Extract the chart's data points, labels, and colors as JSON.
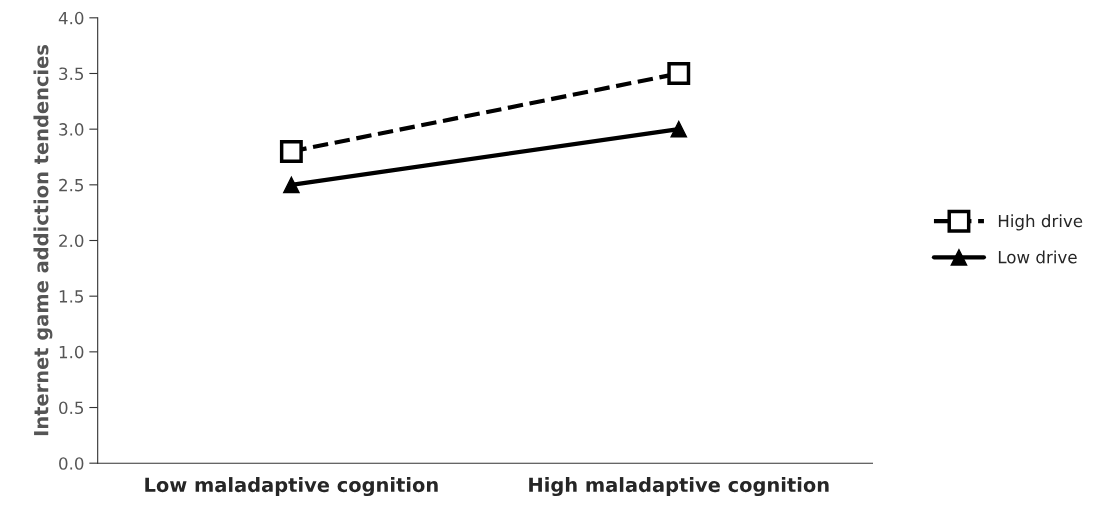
{
  "chart_data": {
    "type": "line",
    "categories": [
      "Low maladaptive cognition",
      "High maladaptive cognition"
    ],
    "ylabel": "Internet game addiction tendencies",
    "series": [
      {
        "name": "High drive",
        "color": "#000000",
        "values": [
          2.8,
          3.5
        ],
        "marker": "square",
        "line_style": "dashed"
      },
      {
        "name": "Low drive",
        "color": "#000000",
        "values": [
          2.5,
          3.0
        ],
        "marker": "triangle",
        "line_style": "solid"
      }
    ],
    "ylim": [
      0,
      4
    ],
    "yticks": [
      {
        "value": 0,
        "label": "0.0"
      },
      {
        "value": 0.5,
        "label": "0.5"
      },
      {
        "value": 1,
        "label": "1.0"
      },
      {
        "value": 1.5,
        "label": "1.5"
      },
      {
        "value": 2,
        "label": "2.0"
      },
      {
        "value": 2.5,
        "label": "2.5"
      },
      {
        "value": 3,
        "label": "3.0"
      },
      {
        "value": 3.5,
        "label": "3.5"
      },
      {
        "value": 4,
        "label": "4.0"
      }
    ],
    "grid": false,
    "legend": "right"
  }
}
